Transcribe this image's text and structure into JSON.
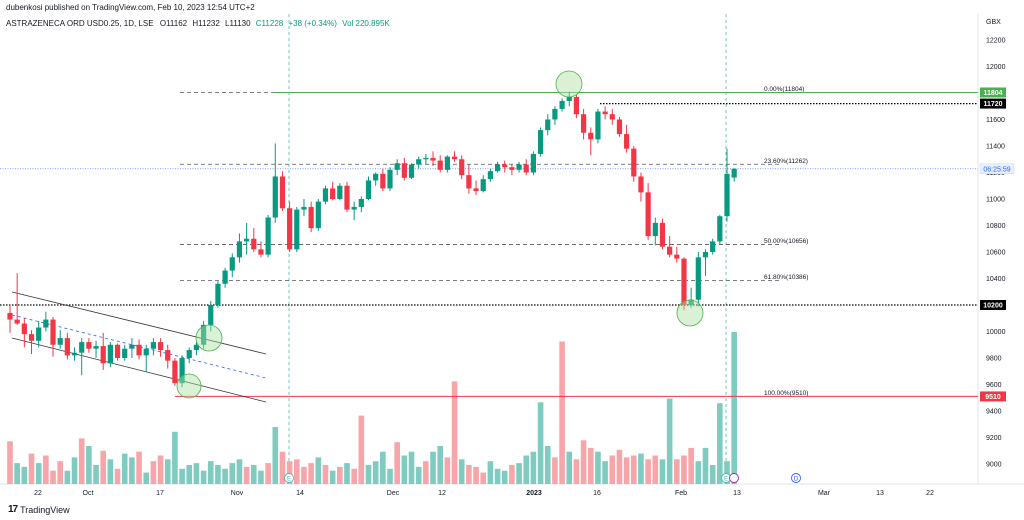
{
  "header": {
    "published": "dubenkosi published on TradingView.com, Feb 10, 2023 12:54 UTC+2"
  },
  "legend": {
    "symbol": "ASTRAZENECA ORD USD0.25, 1D, LSE",
    "open": "O11162",
    "high": "H11232",
    "low": "L11130",
    "close": "C11228",
    "change": "+38 (+0.34%)",
    "volume": "Vol 220.895K"
  },
  "footer": {
    "brand": "TradingView",
    "logo_text": "17"
  },
  "chart_data": {
    "type": "candlestick",
    "currency": "GBX",
    "ylim": [
      8800,
      12400
    ],
    "y_ticks": [
      9000,
      9200,
      9400,
      9600,
      9800,
      10000,
      10200,
      10400,
      10600,
      10800,
      11000,
      11200,
      11400,
      11600,
      11800,
      12000,
      12200
    ],
    "x_ticks": [
      {
        "label": "22",
        "bold": false
      },
      {
        "label": "Oct",
        "bold": false
      },
      {
        "label": "17",
        "bold": false
      },
      {
        "label": "Nov",
        "bold": false
      },
      {
        "label": "14",
        "bold": false
      },
      {
        "label": "Dec",
        "bold": false
      },
      {
        "label": "12",
        "bold": false
      },
      {
        "label": "2023",
        "bold": true
      },
      {
        "label": "16",
        "bold": false
      },
      {
        "label": "Feb",
        "bold": false
      },
      {
        "label": "13",
        "bold": false
      },
      {
        "label": "Mar",
        "bold": false
      },
      {
        "label": "13",
        "bold": false
      },
      {
        "label": "22",
        "bold": false
      }
    ],
    "candles": [
      [
        10140,
        10200,
        9990,
        10090
      ],
      [
        10090,
        10440,
        10050,
        10060
      ],
      [
        10060,
        10100,
        9880,
        9980
      ],
      [
        9980,
        10010,
        9830,
        9930
      ],
      [
        9930,
        10080,
        9880,
        10030
      ],
      [
        10030,
        10150,
        10000,
        10090
      ],
      [
        10090,
        10110,
        9810,
        9900
      ],
      [
        9900,
        10010,
        9870,
        9950
      ],
      [
        9950,
        9990,
        9790,
        9820
      ],
      [
        9820,
        9880,
        9780,
        9840
      ],
      [
        9840,
        9950,
        9670,
        9920
      ],
      [
        9920,
        9950,
        9840,
        9870
      ],
      [
        9870,
        9930,
        9800,
        9890
      ],
      [
        9890,
        9990,
        9710,
        9760
      ],
      [
        9760,
        9920,
        9730,
        9900
      ],
      [
        9900,
        9910,
        9780,
        9800
      ],
      [
        9800,
        9900,
        9780,
        9870
      ],
      [
        9870,
        9950,
        9800,
        9900
      ],
      [
        9900,
        9940,
        9790,
        9820
      ],
      [
        9820,
        9900,
        9700,
        9870
      ],
      [
        9870,
        9950,
        9820,
        9920
      ],
      [
        9920,
        9950,
        9810,
        9860
      ],
      [
        9860,
        9900,
        9720,
        9780
      ],
      [
        9780,
        9800,
        9590,
        9610
      ],
      [
        9610,
        9820,
        9580,
        9800
      ],
      [
        9800,
        9880,
        9760,
        9860
      ],
      [
        9860,
        9920,
        9820,
        9900
      ],
      [
        9900,
        10080,
        9870,
        10050
      ],
      [
        10050,
        10230,
        10000,
        10200
      ],
      [
        10200,
        10380,
        10180,
        10360
      ],
      [
        10360,
        10480,
        10330,
        10460
      ],
      [
        10460,
        10590,
        10410,
        10560
      ],
      [
        10560,
        10740,
        10520,
        10680
      ],
      [
        10680,
        10820,
        10580,
        10700
      ],
      [
        10700,
        10780,
        10600,
        10620
      ],
      [
        10620,
        10680,
        10560,
        10580
      ],
      [
        10580,
        10880,
        10560,
        10860
      ],
      [
        10860,
        11420,
        10820,
        11170
      ],
      [
        11170,
        11210,
        10910,
        10930
      ],
      [
        10930,
        10980,
        10600,
        10620
      ],
      [
        10620,
        10940,
        10600,
        10920
      ],
      [
        10920,
        11000,
        10870,
        10940
      ],
      [
        10940,
        10980,
        10750,
        10780
      ],
      [
        10780,
        11000,
        10760,
        10980
      ],
      [
        10980,
        11100,
        10960,
        11080
      ],
      [
        11080,
        11130,
        10990,
        11000
      ],
      [
        11000,
        11120,
        10990,
        11100
      ],
      [
        11100,
        11130,
        10900,
        10920
      ],
      [
        10920,
        10980,
        10840,
        10940
      ],
      [
        10940,
        11020,
        10900,
        11000
      ],
      [
        11000,
        11170,
        10990,
        11140
      ],
      [
        11140,
        11200,
        11100,
        11190
      ],
      [
        11190,
        11230,
        11060,
        11080
      ],
      [
        11080,
        11240,
        11060,
        11220
      ],
      [
        11220,
        11300,
        11180,
        11270
      ],
      [
        11270,
        11310,
        11140,
        11160
      ],
      [
        11160,
        11270,
        11150,
        11260
      ],
      [
        11260,
        11320,
        11230,
        11300
      ],
      [
        11300,
        11340,
        11260,
        11310
      ],
      [
        11310,
        11360,
        11250,
        11290
      ],
      [
        11290,
        11330,
        11200,
        11220
      ],
      [
        11220,
        11330,
        11200,
        11320
      ],
      [
        11320,
        11360,
        11280,
        11300
      ],
      [
        11300,
        11330,
        11150,
        11180
      ],
      [
        11180,
        11260,
        11040,
        11080
      ],
      [
        11080,
        11140,
        11030,
        11060
      ],
      [
        11060,
        11180,
        11050,
        11150
      ],
      [
        11150,
        11230,
        11130,
        11210
      ],
      [
        11210,
        11280,
        11200,
        11260
      ],
      [
        11260,
        11290,
        11200,
        11240
      ],
      [
        11240,
        11260,
        11180,
        11220
      ],
      [
        11220,
        11280,
        11200,
        11260
      ],
      [
        11260,
        11300,
        11180,
        11200
      ],
      [
        11200,
        11360,
        11180,
        11340
      ],
      [
        11340,
        11540,
        11320,
        11520
      ],
      [
        11520,
        11640,
        11480,
        11600
      ],
      [
        11600,
        11700,
        11560,
        11680
      ],
      [
        11680,
        11760,
        11660,
        11740
      ],
      [
        11740,
        11810,
        11700,
        11770
      ],
      [
        11770,
        11790,
        11610,
        11640
      ],
      [
        11640,
        11680,
        11450,
        11500
      ],
      [
        11500,
        11540,
        11330,
        11450
      ],
      [
        11450,
        11680,
        11420,
        11660
      ],
      [
        11660,
        11700,
        11600,
        11640
      ],
      [
        11640,
        11680,
        11560,
        11600
      ],
      [
        11600,
        11620,
        11470,
        11490
      ],
      [
        11490,
        11560,
        11350,
        11380
      ],
      [
        11380,
        11400,
        11130,
        11170
      ],
      [
        11170,
        11200,
        10980,
        11050
      ],
      [
        11050,
        11120,
        10690,
        10720
      ],
      [
        10720,
        10860,
        10650,
        10820
      ],
      [
        10820,
        10850,
        10620,
        10640
      ],
      [
        10640,
        10720,
        10560,
        10580
      ],
      [
        10580,
        10640,
        10520,
        10550
      ],
      [
        10550,
        10560,
        10160,
        10200
      ],
      [
        10200,
        10330,
        10180,
        10240
      ],
      [
        10240,
        10600,
        10190,
        10560
      ],
      [
        10560,
        10620,
        10420,
        10600
      ],
      [
        10600,
        10700,
        10580,
        10680
      ],
      [
        10680,
        10880,
        10660,
        10870
      ],
      [
        10870,
        11380,
        10830,
        11190
      ],
      [
        11162,
        11232,
        11130,
        11228
      ]
    ],
    "volume": [
      [
        45,
        "d"
      ],
      [
        22,
        "u"
      ],
      [
        18,
        "u"
      ],
      [
        32,
        "d"
      ],
      [
        22,
        "u"
      ],
      [
        30,
        "d"
      ],
      [
        14,
        "d"
      ],
      [
        24,
        "d"
      ],
      [
        14,
        "u"
      ],
      [
        28,
        "u"
      ],
      [
        48,
        "d"
      ],
      [
        40,
        "u"
      ],
      [
        20,
        "u"
      ],
      [
        35,
        "d"
      ],
      [
        26,
        "u"
      ],
      [
        16,
        "d"
      ],
      [
        32,
        "u"
      ],
      [
        28,
        "u"
      ],
      [
        34,
        "d"
      ],
      [
        12,
        "u"
      ],
      [
        24,
        "d"
      ],
      [
        30,
        "d"
      ],
      [
        26,
        "u"
      ],
      [
        55,
        "u"
      ],
      [
        16,
        "u"
      ],
      [
        20,
        "u"
      ],
      [
        22,
        "u"
      ],
      [
        14,
        "u"
      ],
      [
        24,
        "u"
      ],
      [
        20,
        "u"
      ],
      [
        16,
        "u"
      ],
      [
        22,
        "u"
      ],
      [
        26,
        "u"
      ],
      [
        18,
        "d"
      ],
      [
        20,
        "u"
      ],
      [
        14,
        "u"
      ],
      [
        22,
        "d"
      ],
      [
        60,
        "u"
      ],
      [
        34,
        "d"
      ],
      [
        24,
        "d"
      ],
      [
        26,
        "d"
      ],
      [
        18,
        "d"
      ],
      [
        22,
        "d"
      ],
      [
        28,
        "u"
      ],
      [
        20,
        "d"
      ],
      [
        14,
        "u"
      ],
      [
        18,
        "d"
      ],
      [
        22,
        "u"
      ],
      [
        16,
        "d"
      ],
      [
        72,
        "d"
      ],
      [
        20,
        "u"
      ],
      [
        24,
        "u"
      ],
      [
        34,
        "u"
      ],
      [
        16,
        "u"
      ],
      [
        44,
        "d"
      ],
      [
        30,
        "u"
      ],
      [
        34,
        "u"
      ],
      [
        18,
        "u"
      ],
      [
        24,
        "d"
      ],
      [
        34,
        "u"
      ],
      [
        40,
        "u"
      ],
      [
        28,
        "d"
      ],
      [
        108,
        "d"
      ],
      [
        26,
        "u"
      ],
      [
        20,
        "d"
      ],
      [
        18,
        "d"
      ],
      [
        12,
        "d"
      ],
      [
        24,
        "u"
      ],
      [
        16,
        "u"
      ],
      [
        14,
        "u"
      ],
      [
        20,
        "d"
      ],
      [
        22,
        "u"
      ],
      [
        30,
        "u"
      ],
      [
        34,
        "u"
      ],
      [
        86,
        "u"
      ],
      [
        40,
        "u"
      ],
      [
        28,
        "d"
      ],
      [
        150,
        "d"
      ],
      [
        34,
        "u"
      ],
      [
        26,
        "d"
      ],
      [
        46,
        "d"
      ],
      [
        38,
        "d"
      ],
      [
        34,
        "u"
      ],
      [
        24,
        "u"
      ],
      [
        30,
        "d"
      ],
      [
        36,
        "d"
      ],
      [
        28,
        "d"
      ],
      [
        30,
        "d"
      ],
      [
        32,
        "u"
      ],
      [
        26,
        "d"
      ],
      [
        30,
        "d"
      ],
      [
        26,
        "u"
      ],
      [
        90,
        "u"
      ],
      [
        26,
        "d"
      ],
      [
        30,
        "d"
      ],
      [
        38,
        "d"
      ],
      [
        24,
        "u"
      ],
      [
        38,
        "u"
      ],
      [
        20,
        "u"
      ],
      [
        85,
        "u"
      ],
      [
        24,
        "u"
      ],
      [
        160,
        "u"
      ]
    ],
    "fib_levels": [
      {
        "label": "0.00%(11804)",
        "price": 11804
      },
      {
        "label": "23.60%(11262)",
        "price": 11262
      },
      {
        "label": "50.00%(10656)",
        "price": 10656
      },
      {
        "label": "61.80%(10386)",
        "price": 10386
      },
      {
        "label": "100.00%(9510)",
        "price": 9510
      }
    ],
    "horizontal_lines": [
      {
        "price": 11804,
        "label": "11804",
        "style": "solid",
        "color": "#4caf50"
      },
      {
        "price": 11720,
        "label": "11720",
        "style": "dotted",
        "color": "#000000"
      },
      {
        "price": 10200,
        "label": "10200",
        "style": "dotted",
        "color": "#000000"
      },
      {
        "price": 9510,
        "label": "9510",
        "style": "solid",
        "color": "#f23645"
      }
    ],
    "current_price": {
      "price": 11228,
      "label": "06:25:59",
      "color": "#2962ff"
    },
    "event_markers": [
      "E",
      "E",
      "D"
    ],
    "colors": {
      "up": "#089981",
      "down": "#f23645",
      "volume_up": "#7fcbc0",
      "volume_down": "#f7a5a9",
      "grid": "#f0f3fa",
      "circle_fill": "rgba(174,224,164,0.45)",
      "circle_stroke": "#4caf50"
    }
  }
}
